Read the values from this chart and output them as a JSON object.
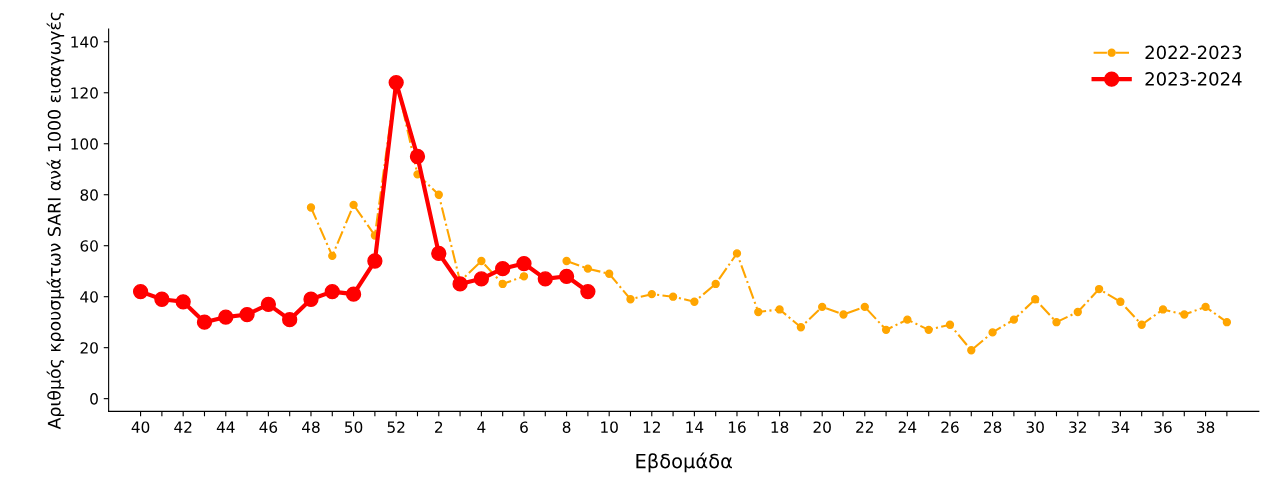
{
  "chart_data": {
    "type": "line",
    "xlabel": "Εβδομάδα",
    "ylabel": "Αριθμός κρουσμάτων SARI ανά 1000 εισαγωγές",
    "categories": [
      "40",
      null,
      "42",
      null,
      "44",
      null,
      "46",
      null,
      "48",
      null,
      "50",
      null,
      "52",
      null,
      "2",
      null,
      "4",
      null,
      "6",
      null,
      "8",
      null,
      "10",
      null,
      "12",
      null,
      "14",
      null,
      "16",
      null,
      "18",
      null,
      "20",
      null,
      "22",
      null,
      "24",
      null,
      "26",
      null,
      "28",
      null,
      "30",
      null,
      "32",
      null,
      "34",
      null,
      "36",
      null,
      "38",
      null
    ],
    "series": [
      {
        "name": "2022-2023",
        "color": "#ffa500",
        "line_style": "dashdot",
        "values": [
          null,
          null,
          null,
          null,
          null,
          null,
          null,
          null,
          75,
          56,
          76,
          64,
          125,
          88,
          80,
          46,
          54,
          45,
          48,
          null,
          54,
          51,
          49,
          39,
          41,
          40,
          38,
          45,
          57,
          34,
          35,
          28,
          36,
          33,
          36,
          27,
          31,
          27,
          29,
          19,
          26,
          31,
          39,
          30,
          34,
          43,
          38,
          29,
          35,
          33,
          36,
          30
        ]
      },
      {
        "name": "2023-2024",
        "color": "#ff0000",
        "line_style": "solid",
        "values": [
          42,
          39,
          38,
          30,
          32,
          33,
          37,
          31,
          39,
          42,
          41,
          54,
          124,
          95,
          57,
          45,
          47,
          51,
          53,
          47,
          48,
          42,
          null,
          null,
          null,
          null,
          null,
          null,
          null,
          null,
          null,
          null,
          null,
          null,
          null,
          null,
          null,
          null,
          null,
          null,
          null,
          null,
          null,
          null,
          null,
          null,
          null,
          null,
          null,
          null,
          null,
          null
        ]
      }
    ],
    "ylim": [
      -5,
      145
    ],
    "yticks": [
      0,
      20,
      40,
      60,
      80,
      100,
      120,
      140
    ],
    "grid": false,
    "legend": "top right",
    "marker": "circle"
  }
}
